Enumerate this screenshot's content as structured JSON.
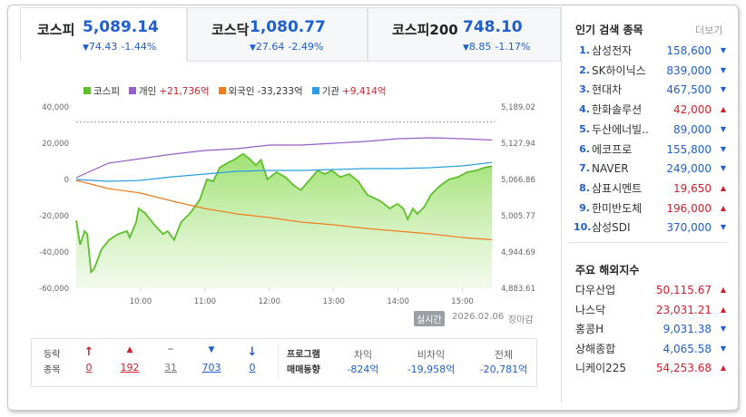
{
  "tabs": [
    {
      "name": "코스피",
      "value": "5,089.14",
      "change": "74.43",
      "rate": "-1.44%",
      "dir": "down",
      "active": true
    },
    {
      "name": "코스닥",
      "value": "1,080.77",
      "change": "27.64",
      "rate": "-2.49%",
      "dir": "down",
      "active": false
    },
    {
      "name": "코스피200",
      "value": "748.10",
      "change": "8.85",
      "rate": "-1.17%",
      "dir": "down",
      "active": false
    }
  ],
  "chart_data": {
    "type": "line",
    "x": [
      9.0,
      9.06,
      9.13,
      9.17,
      9.23,
      9.28,
      9.34,
      9.39,
      9.51,
      9.65,
      9.79,
      9.83,
      9.93,
      9.97,
      10.07,
      10.21,
      10.35,
      10.42,
      10.52,
      10.63,
      10.77,
      10.92,
      11.03,
      11.13,
      11.23,
      11.34,
      11.48,
      11.59,
      11.69,
      11.79,
      11.87,
      11.97,
      12.11,
      12.25,
      12.39,
      12.49,
      12.61,
      12.75,
      12.86,
      12.97,
      13.1,
      13.24,
      13.38,
      13.52,
      13.62,
      13.73,
      13.87,
      13.99,
      14.08,
      14.15,
      14.23,
      14.3,
      14.41,
      14.51,
      14.65,
      14.79,
      14.93,
      15.07,
      15.21,
      15.35,
      15.46
    ],
    "xlim": [
      9,
      15.5
    ],
    "xticks": [
      {
        "value": 10,
        "label": "10:00"
      },
      {
        "value": 11,
        "label": "11:00"
      },
      {
        "value": 12,
        "label": "12:00"
      },
      {
        "value": 13,
        "label": "13:00"
      },
      {
        "value": 14,
        "label": "14:00"
      },
      {
        "value": 15,
        "label": "15:00"
      }
    ],
    "ylim": [
      -60000,
      40000
    ],
    "yticks": [
      {
        "value": 40000,
        "label": "40,000"
      },
      {
        "value": 20000,
        "label": "20,000"
      },
      0,
      {
        "value": -20000,
        "label": "-20,000"
      },
      {
        "value": -40000,
        "label": "-40,000"
      },
      {
        "value": -60000,
        "label": "-60,000"
      }
    ],
    "y2lim": [
      4883.61,
      5189.02
    ],
    "y2ticks": [
      {
        "value": 5189.02,
        "label": "5,189.02"
      },
      {
        "value": 5127.94,
        "label": "5,127.94"
      },
      {
        "value": 5066.86,
        "label": "5,066.86"
      },
      {
        "value": 5005.77,
        "label": "5,005.77"
      },
      {
        "value": 4944.69,
        "label": "4,944.69"
      },
      {
        "value": 4883.61,
        "label": "4,883.61"
      }
    ],
    "baseline": 5163.57,
    "grid": false,
    "series": [
      {
        "name": "코스피",
        "color": "#5cc02a",
        "axis": "y2",
        "area": true,
        "values": [
          4998,
          4957,
          4980,
          4975,
          4911,
          4917,
          4934,
          4949,
          4965,
          4975,
          4980,
          4969,
          4995,
          5018,
          5010,
          4991,
          4975,
          4980,
          4965,
          4995,
          5010,
          5033,
          5067,
          5064,
          5087,
          5094,
          5102,
          5110,
          5102,
          5091,
          5100,
          5067,
          5079,
          5071,
          5056,
          5049,
          5064,
          5082,
          5076,
          5082,
          5071,
          5076,
          5064,
          5041,
          5036,
          5030,
          5018,
          5026,
          5018,
          5000,
          5018,
          5009,
          5021,
          5041,
          5056,
          5067,
          5071,
          5079,
          5082,
          5087,
          5089.14
        ]
      },
      {
        "name": "개인",
        "legend_value": "+21,736억",
        "color": "#9a5cc6",
        "axis": "y",
        "x": [
          9.0,
          9.5,
          10.0,
          10.5,
          11.0,
          11.5,
          12.0,
          12.5,
          13.0,
          13.5,
          14.0,
          14.5,
          15.0,
          15.46
        ],
        "values": [
          1000,
          9000,
          11500,
          14000,
          16000,
          17000,
          19000,
          19000,
          20000,
          21000,
          22500,
          23000,
          22500,
          21736
        ]
      },
      {
        "name": "외국인",
        "legend_value": "-33,233억",
        "color": "#f07d1e",
        "axis": "y",
        "x": [
          9.0,
          9.5,
          10.0,
          10.5,
          11.0,
          11.5,
          12.0,
          12.5,
          13.0,
          13.5,
          14.0,
          14.5,
          15.0,
          15.46
        ],
        "values": [
          -500,
          -5000,
          -7500,
          -12000,
          -16000,
          -19000,
          -21000,
          -23500,
          -25000,
          -27000,
          -28500,
          -30000,
          -32000,
          -33233
        ]
      },
      {
        "name": "기관",
        "legend_value": "+9,414억",
        "color": "#2b9de2",
        "axis": "y",
        "x": [
          9.0,
          9.5,
          10.0,
          10.5,
          11.0,
          11.5,
          12.0,
          12.5,
          13.0,
          13.5,
          14.0,
          14.5,
          15.0,
          15.46
        ],
        "values": [
          0,
          -1000,
          -500,
          1500,
          3000,
          4500,
          5000,
          5000,
          5500,
          6000,
          6000,
          6500,
          7500,
          9414
        ]
      }
    ]
  },
  "status": {
    "badge": "실시간",
    "date": "2026.02.06",
    "state": "장마감"
  },
  "breadth": {
    "label": [
      "등락",
      "종목"
    ],
    "items": [
      {
        "kind": "upper",
        "count": "0"
      },
      {
        "kind": "up",
        "count": "192"
      },
      {
        "kind": "flat",
        "count": "31"
      },
      {
        "kind": "down",
        "count": "703"
      },
      {
        "kind": "lower",
        "count": "0"
      }
    ]
  },
  "program": {
    "label": [
      "프로그램",
      "매매동향"
    ],
    "items": [
      {
        "name": "차익",
        "value": "-824억"
      },
      {
        "name": "비차익",
        "value": "-19,958억"
      },
      {
        "name": "전체",
        "value": "-20,781억"
      }
    ]
  },
  "popular": {
    "title": "인기 검색 종목",
    "more": "더보기",
    "items": [
      {
        "rank": "1.",
        "name": "삼성전자",
        "price": "158,600",
        "dir": "down"
      },
      {
        "rank": "2.",
        "name": "SK하이닉스",
        "price": "839,000",
        "dir": "down"
      },
      {
        "rank": "3.",
        "name": "현대차",
        "price": "467,500",
        "dir": "down"
      },
      {
        "rank": "4.",
        "name": "한화솔루션",
        "price": "42,000",
        "dir": "up"
      },
      {
        "rank": "5.",
        "name": "두산에너빌..",
        "price": "89,000",
        "dir": "down"
      },
      {
        "rank": "6.",
        "name": "에코프로",
        "price": "155,800",
        "dir": "down"
      },
      {
        "rank": "7.",
        "name": "NAVER",
        "price": "249,000",
        "dir": "down"
      },
      {
        "rank": "8.",
        "name": "삼표시멘트",
        "price": "19,650",
        "dir": "up"
      },
      {
        "rank": "9.",
        "name": "한미반도체",
        "price": "196,000",
        "dir": "up"
      },
      {
        "rank": "10.",
        "name": "삼성SDI",
        "price": "370,000",
        "dir": "down"
      }
    ]
  },
  "world": {
    "title": "주요 해외지수",
    "items": [
      {
        "name": "다우산업",
        "value": "50,115.67",
        "dir": "up"
      },
      {
        "name": "나스닥",
        "value": "23,031.21",
        "dir": "up"
      },
      {
        "name": "홍콩H",
        "value": "9,031.38",
        "dir": "down"
      },
      {
        "name": "상해종합",
        "value": "4,065.58",
        "dir": "down"
      },
      {
        "name": "니케이225",
        "value": "54,253.68",
        "dir": "up"
      }
    ]
  }
}
